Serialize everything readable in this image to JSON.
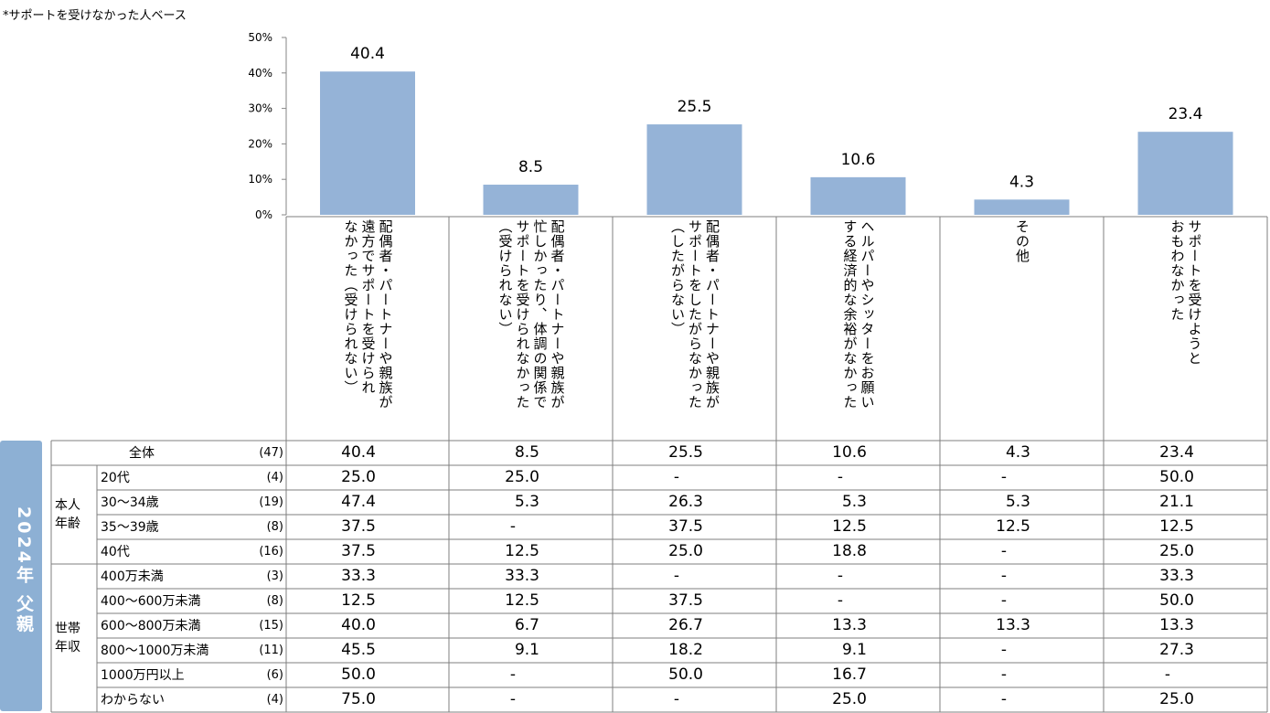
{
  "base_note": "*サポートを受けなかった人ベース",
  "side_title": "2024年 父親",
  "chart_data": {
    "type": "bar",
    "categories": [
      "配偶者・パートナーや親族が遠方でサポートを受けられなかった（受けられない）",
      "配偶者・パートナーや親族が忙しかったり、体調の関係でサポートを受けられなかった（受けられない）",
      "配偶者・パートナーや親族がサポートをしたがらなかった（したがらない）",
      "ヘルパーやシッターをお願いする経済的な余裕がなかった",
      "その他",
      "サポートを受けようとおもわなかった"
    ],
    "category_lines": [
      [
        "配偶者・パートナーや親族が",
        "遠方でサポートを受けられ",
        "なかった（受けられない）"
      ],
      [
        "配偶者・パートナーや親族が",
        "忙しかったり、体調の関係で",
        "サポートを受けられなかった",
        "（受けられない）"
      ],
      [
        "配偶者・パートナーや親族が",
        "サポートをしたがらなかった",
        "（したがらない）"
      ],
      [
        "ヘルパーやシッターをお願い",
        "する経済的な余裕がなかった"
      ],
      [
        "その他"
      ],
      [
        "サポートを受けようと",
        "おもわなかった"
      ]
    ],
    "values": [
      40.4,
      8.5,
      25.5,
      10.6,
      4.3,
      23.4
    ],
    "value_labels": [
      "40.4",
      "8.5",
      "25.5",
      "10.6",
      "4.3",
      "23.4"
    ],
    "yticks": [
      "0%",
      "10%",
      "20%",
      "30%",
      "40%",
      "50%"
    ],
    "ylim": [
      0,
      50
    ],
    "bar_color": "#95b3d7",
    "grid": false
  },
  "table": {
    "total": {
      "label": "全体",
      "n": "(47)",
      "values": [
        "40.4",
        "8.5",
        "25.5",
        "10.6",
        "4.3",
        "23.4"
      ]
    },
    "groups": [
      {
        "label_lines": [
          "本人",
          "年齢"
        ],
        "rows": [
          {
            "label": "20代",
            "n": "(4)",
            "values": [
              "25.0",
              "25.0",
              "-",
              "-",
              "-",
              "50.0"
            ]
          },
          {
            "label": "30～34歳",
            "n": "(19)",
            "values": [
              "47.4",
              "5.3",
              "26.3",
              "5.3",
              "5.3",
              "21.1"
            ]
          },
          {
            "label": "35～39歳",
            "n": "(8)",
            "values": [
              "37.5",
              "-",
              "37.5",
              "12.5",
              "12.5",
              "12.5"
            ]
          },
          {
            "label": "40代",
            "n": "(16)",
            "values": [
              "37.5",
              "12.5",
              "25.0",
              "18.8",
              "-",
              "25.0"
            ]
          }
        ]
      },
      {
        "label_lines": [
          "世帯",
          "年収"
        ],
        "rows": [
          {
            "label": "400万未満",
            "n": "(3)",
            "values": [
              "33.3",
              "33.3",
              "-",
              "-",
              "-",
              "33.3"
            ]
          },
          {
            "label": "400～600万未満",
            "n": "(8)",
            "values": [
              "12.5",
              "12.5",
              "37.5",
              "-",
              "-",
              "50.0"
            ]
          },
          {
            "label": "600～800万未満",
            "n": "(15)",
            "values": [
              "40.0",
              "6.7",
              "26.7",
              "13.3",
              "13.3",
              "13.3"
            ]
          },
          {
            "label": "800～1000万未満",
            "n": "(11)",
            "values": [
              "45.5",
              "9.1",
              "18.2",
              "9.1",
              "-",
              "27.3"
            ]
          },
          {
            "label": "1000万円以上",
            "n": "(6)",
            "values": [
              "50.0",
              "-",
              "50.0",
              "16.7",
              "-",
              "-"
            ]
          },
          {
            "label": "わからない",
            "n": "(4)",
            "values": [
              "75.0",
              "-",
              "-",
              "25.0",
              "-",
              "25.0"
            ]
          }
        ]
      }
    ]
  }
}
